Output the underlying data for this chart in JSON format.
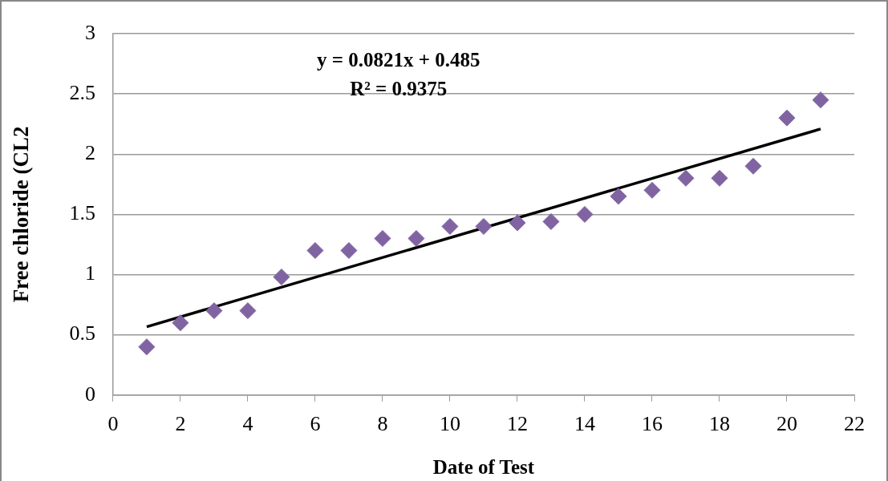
{
  "chart_data": {
    "type": "scatter",
    "xlabel": "Date of Test",
    "ylabel": "Free chloride (CL2",
    "annotations": [
      "y = 0.0821x + 0.485",
      "R² = 0.9375"
    ],
    "x": [
      1,
      2,
      3,
      4,
      5,
      6,
      7,
      8,
      9,
      10,
      11,
      12,
      13,
      14,
      15,
      16,
      17,
      18,
      19,
      20,
      21
    ],
    "series": [
      {
        "color": "#8064a2",
        "values": [
          0.4,
          0.6,
          0.7,
          0.7,
          0.98,
          1.2,
          1.2,
          1.3,
          1.3,
          1.4,
          1.4,
          1.43,
          1.44,
          1.5,
          1.65,
          1.7,
          1.8,
          1.8,
          1.9,
          2.3,
          2.45
        ]
      },
      {
        "type": "line",
        "color": "#000000",
        "x": [
          1,
          21
        ],
        "values": [
          0.567,
          2.209
        ],
        "marker": "none"
      }
    ],
    "marker": "diamond",
    "xlim": [
      0,
      22
    ],
    "xticks": [
      0,
      2,
      4,
      6,
      8,
      10,
      12,
      14,
      16,
      18,
      20,
      22
    ],
    "ylim": [
      0,
      3
    ],
    "yticks": [
      0,
      0.5,
      1,
      1.5,
      2,
      2.5,
      3
    ],
    "grid": "y",
    "legend": false
  }
}
